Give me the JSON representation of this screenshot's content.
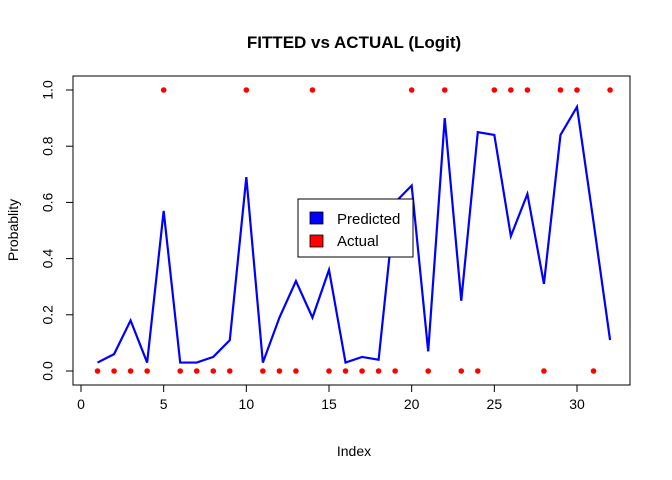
{
  "chart_data": {
    "type": "line",
    "title": "FITTED vs ACTUAL (Logit)",
    "xlabel": "Index",
    "ylabel": "Probablity",
    "xlim": [
      0,
      32
    ],
    "ylim": [
      0,
      1
    ],
    "xticks": [
      "0",
      "5",
      "10",
      "15",
      "20",
      "25",
      "30"
    ],
    "yticks": [
      "0.0",
      "0.2",
      "0.4",
      "0.6",
      "0.8",
      "1.0"
    ],
    "x": [
      1,
      2,
      3,
      4,
      5,
      6,
      7,
      8,
      9,
      10,
      11,
      12,
      13,
      14,
      15,
      16,
      17,
      18,
      19,
      20,
      21,
      22,
      23,
      24,
      25,
      26,
      27,
      28,
      29,
      30,
      31,
      32
    ],
    "series": [
      {
        "name": "Predicted",
        "style": "line",
        "color": "#0000ff",
        "values": [
          0.03,
          0.06,
          0.18,
          0.03,
          0.57,
          0.03,
          0.03,
          0.05,
          0.11,
          0.69,
          0.03,
          0.19,
          0.32,
          0.19,
          0.36,
          0.03,
          0.05,
          0.04,
          0.6,
          0.66,
          0.07,
          0.9,
          0.25,
          0.85,
          0.84,
          0.48,
          0.63,
          0.31,
          0.84,
          0.94,
          0.53,
          0.11
        ]
      },
      {
        "name": "Actual",
        "style": "points",
        "color": "#ff0000",
        "values": [
          0,
          0,
          0,
          0,
          1,
          0,
          0,
          0,
          0,
          1,
          0,
          0,
          0,
          1,
          0,
          0,
          0,
          0,
          0,
          1,
          0,
          1,
          0,
          0,
          1,
          1,
          1,
          0,
          1,
          1,
          0,
          1
        ]
      }
    ],
    "legend_position": "center"
  }
}
